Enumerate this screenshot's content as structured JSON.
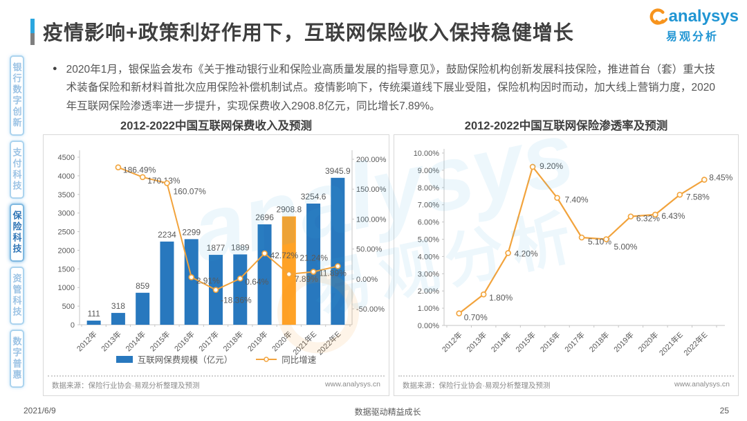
{
  "page": {
    "title": "疫情影响+政策利好作用下，互联网保险收入保持稳健增长",
    "bullet": "2020年1月，银保监会发布《关于推动银行业和保险业高质量发展的指导意见》，鼓励保险机构创新发展科技保险，推进首台（套）重大技术装备保险和新材料首批次应用保险补偿机制试点。疫情影响下，传统渠道线下展业受阻，保险机构因时而动，加大线上营销力度，2020年互联网保险渗透率进一步提升，实现保费收入2908.8亿元，同比增长7.89%。",
    "footer": {
      "date": "2021/6/9",
      "slogan": "数据驱动精益成长",
      "page_number": "25"
    }
  },
  "logo": {
    "brand_en": "analysys",
    "brand_cn": "易观分析"
  },
  "watermark": {
    "text_en": "analysys",
    "text_cn": "易观分析"
  },
  "sidebar": {
    "items": [
      {
        "label": "银行数字创新",
        "active": false
      },
      {
        "label": "支付科技",
        "active": false
      },
      {
        "label": "保险科技",
        "active": true
      },
      {
        "label": "资管科技",
        "active": false
      },
      {
        "label": "数字普惠",
        "active": false
      }
    ]
  },
  "chart_data": [
    {
      "type": "bar",
      "title": "2012-2022中国互联网保费收入及预测",
      "categories": [
        "2012年",
        "2013年",
        "2014年",
        "2015年",
        "2016年",
        "2017年",
        "2018年",
        "2019年",
        "2020年",
        "2021年E",
        "2022年E"
      ],
      "series": [
        {
          "name": "互联网保费规模（亿元）",
          "type": "bar",
          "values": [
            111,
            318,
            859,
            2234,
            2299,
            1877,
            1889,
            2696,
            2908.8,
            3254.6,
            3945.9
          ],
          "labels": [
            "111",
            "318",
            "859",
            "2234",
            "2299",
            "1877",
            "1889",
            "2696",
            "2908.8",
            "3254.6",
            "3945.9"
          ],
          "color": "#2878BE",
          "highlight_index": 8,
          "highlight_color": "#FFA226"
        },
        {
          "name": "同比增速",
          "type": "line",
          "axis": "right",
          "values": [
            null,
            186.49,
            170.13,
            160.07,
            2.91,
            -18.36,
            0.64,
            42.72,
            7.89,
            11.89,
            21.24
          ],
          "labels": [
            null,
            "186.49%",
            "170.13%",
            "160.07%",
            "2.91%",
            "-18.36%",
            "0.64%",
            "42.72%",
            "7.89%",
            "11.89%",
            "21.24%"
          ],
          "color": "#F2A33C"
        }
      ],
      "left_axis": {
        "min": 0,
        "max": 4500,
        "step": 500,
        "ticks": [
          "4500",
          "4000",
          "3500",
          "3000",
          "2500",
          "2000",
          "1500",
          "1000",
          "500",
          "0"
        ]
      },
      "right_axis": {
        "min": -50,
        "max": 200,
        "step": 50,
        "ticks": [
          "200.00%",
          "150.00%",
          "100.00%",
          "50.00%",
          "0.00%",
          "-50.00%"
        ]
      },
      "legend_position": "bottom",
      "grid": false,
      "source": "数据来源：保险行业协会·易观分析整理及预测",
      "website": "www.analysys.cn"
    },
    {
      "type": "line",
      "title": "2012-2022中国互联网保险渗透率及预测",
      "categories": [
        "2012年",
        "2013年",
        "2014年",
        "2015年",
        "2016年",
        "2017年",
        "2018年",
        "2019年",
        "2020年",
        "2021年E",
        "2022年E"
      ],
      "series": [
        {
          "name": "互联网保险渗透率",
          "type": "line",
          "values": [
            0.7,
            1.8,
            4.2,
            9.2,
            7.4,
            5.1,
            5.0,
            6.32,
            6.43,
            7.58,
            8.45
          ],
          "labels": [
            "0.70%",
            "1.80%",
            "4.20%",
            "9.20%",
            "7.40%",
            "5.10%",
            "5.00%",
            "6.32%",
            "6.43%",
            "7.58%",
            "8.45%"
          ],
          "color": "#F2A33C"
        }
      ],
      "left_axis": {
        "min": 0,
        "max": 10,
        "step": 1,
        "ticks": [
          "10.00%",
          "9.00%",
          "8.00%",
          "7.00%",
          "6.00%",
          "5.00%",
          "4.00%",
          "3.00%",
          "2.00%",
          "1.00%",
          "0.00%"
        ]
      },
      "grid": false,
      "source": "数据来源：保险行业协会·易观分析整理及预测",
      "website": "www.analysys.cn"
    }
  ]
}
